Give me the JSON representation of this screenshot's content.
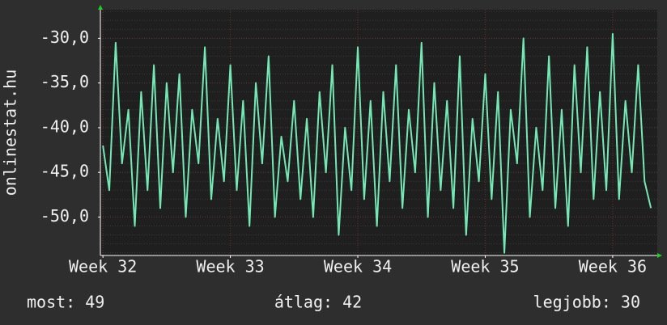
{
  "chart_data": {
    "type": "line",
    "y_label": "onlinestat.hu",
    "x": [
      32.0,
      32.05,
      32.1,
      32.15,
      32.2,
      32.25,
      32.3,
      32.35,
      32.4,
      32.45,
      32.5,
      32.55,
      32.6,
      32.65,
      32.7,
      32.75,
      32.8,
      32.85,
      32.9,
      32.95,
      33.0,
      33.05,
      33.1,
      33.15,
      33.2,
      33.25,
      33.3,
      33.35,
      33.4,
      33.45,
      33.5,
      33.55,
      33.6,
      33.65,
      33.7,
      33.75,
      33.8,
      33.85,
      33.9,
      33.95,
      34.0,
      34.05,
      34.1,
      34.15,
      34.2,
      34.25,
      34.3,
      34.35,
      34.4,
      34.45,
      34.5,
      34.55,
      34.6,
      34.65,
      34.7,
      34.75,
      34.8,
      34.85,
      34.9,
      34.95,
      35.0,
      35.05,
      35.1,
      35.15,
      35.2,
      35.25,
      35.3,
      35.35,
      35.4,
      35.45,
      35.5,
      35.55,
      35.6,
      35.65,
      35.7,
      35.75,
      35.8,
      35.85,
      35.9,
      35.95,
      36.0,
      36.05,
      36.1,
      36.15,
      36.2,
      36.25,
      36.3
    ],
    "values": [
      -42,
      -47,
      -30.5,
      -44,
      -38,
      -51,
      -36,
      -47,
      -33,
      -49,
      -35,
      -45,
      -34,
      -50,
      -38,
      -44,
      -31,
      -48,
      -39,
      -46,
      -33,
      -47,
      -37,
      -51,
      -35,
      -44,
      -32,
      -50,
      -41,
      -46,
      -37,
      -48,
      -39,
      -50,
      -36,
      -45,
      -33,
      -52,
      -40,
      -47,
      -31,
      -48,
      -37,
      -51,
      -36,
      -46,
      -33,
      -49,
      -38,
      -45,
      -30.5,
      -50,
      -35,
      -47,
      -37,
      -49,
      -32,
      -52,
      -39,
      -46,
      -34,
      -48,
      -36,
      -54,
      -38,
      -44,
      -30,
      -50,
      -40,
      -47,
      -32,
      -49,
      -38,
      -51,
      -33,
      -45,
      -31,
      -48,
      -36,
      -47,
      -29.5,
      -48,
      -37,
      -45,
      -33,
      -46,
      -49
    ],
    "color": "#74e8b4",
    "xlim": [
      31.98,
      36.35
    ],
    "xticks": [
      {
        "value": 32,
        "label": "Week 32"
      },
      {
        "value": 33,
        "label": "Week 33"
      },
      {
        "value": 34,
        "label": "Week 34"
      },
      {
        "value": 35,
        "label": "Week 35"
      },
      {
        "value": 36,
        "label": "Week 36"
      }
    ],
    "ylim": [
      -54.3,
      -26.8
    ],
    "yticks": [
      {
        "value": -30,
        "label": "-30,0"
      },
      {
        "value": -35,
        "label": "-35,0"
      },
      {
        "value": -40,
        "label": "-40,0"
      },
      {
        "value": -45,
        "label": "-45,0"
      },
      {
        "value": -50,
        "label": "-50,0"
      }
    ],
    "grid": true,
    "footer": {
      "current": "most: 49",
      "average": "átlag: 42",
      "best": "legjobb: 30"
    }
  }
}
